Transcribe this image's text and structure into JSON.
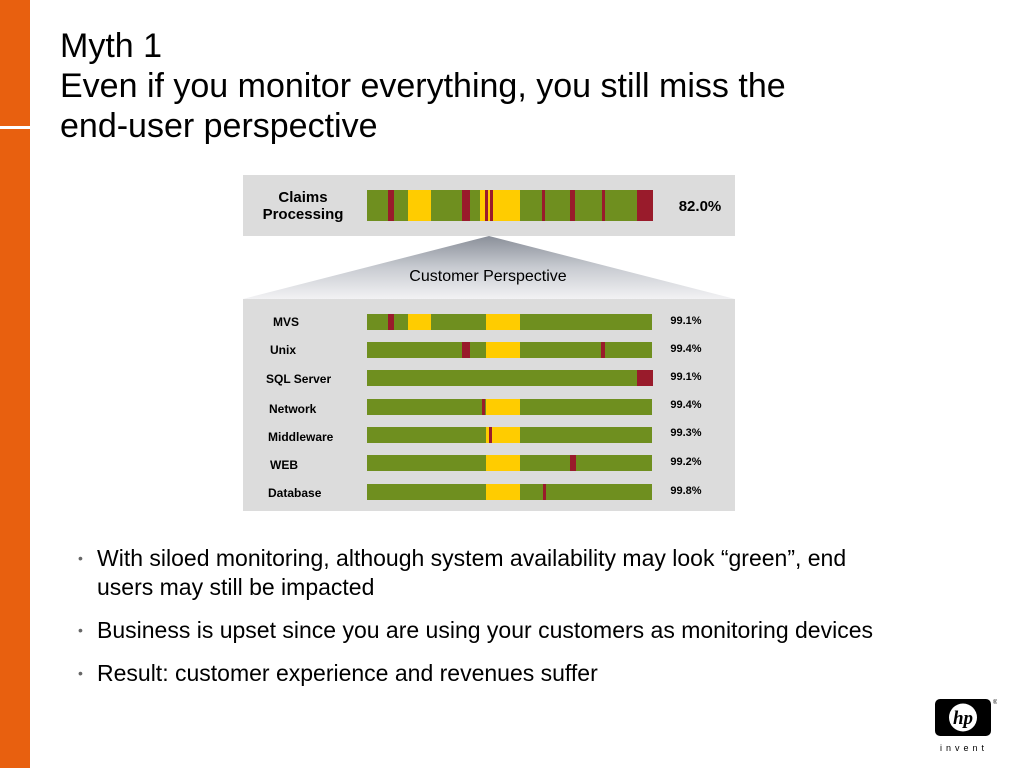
{
  "title": {
    "line1": "Myth 1",
    "line2": "Even if you monitor everything, you still miss the",
    "line3": "end-user perspective"
  },
  "claims": {
    "label_line1": "Claims",
    "label_line2": "Processing",
    "percent": "82.0%"
  },
  "funnel_label": "Customer Perspective",
  "rows": [
    {
      "label": "MVS",
      "percent": "99.1%"
    },
    {
      "label": "Unix",
      "percent": "99.4%"
    },
    {
      "label": "SQL Server",
      "percent": "99.1%"
    },
    {
      "label": "Network",
      "percent": "99.4%"
    },
    {
      "label": "Middleware",
      "percent": "99.3%"
    },
    {
      "label": "WEB",
      "percent": "99.2%"
    },
    {
      "label": "Database",
      "percent": "99.8%"
    }
  ],
  "bullets": [
    "With siloed monitoring, although system availability may look “green”, end users may still be impacted",
    "Business is upset since you are using your customers as monitoring devices",
    "Result: customer experience and revenues suffer"
  ],
  "logo": {
    "mark": "hp",
    "tagline": "invent",
    "registered": "®"
  },
  "colors": {
    "accent": "#e8600f",
    "ok": "#6f8f1f",
    "warning": "#ffcc00",
    "down": "#991b2b",
    "panel": "#dcdcdc"
  }
}
